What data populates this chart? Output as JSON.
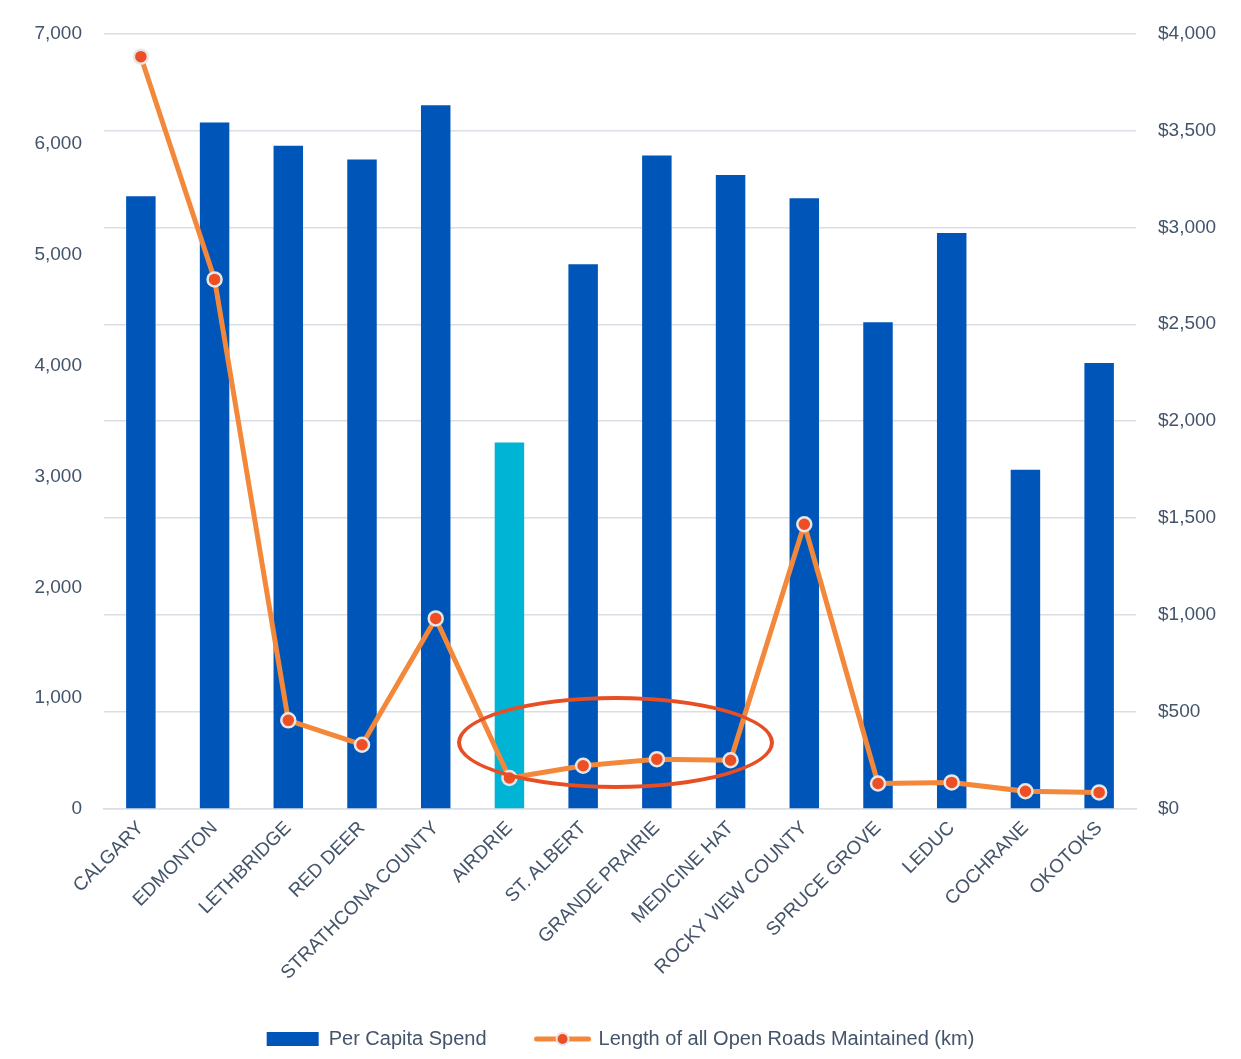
{
  "chart_data": {
    "type": "bar",
    "categories": [
      "CALGARY",
      "EDMONTON",
      "LETHBRIDGE",
      "RED DEER",
      "STRATHCONA COUNTY",
      "AIRDRIE",
      "ST. ALBERT",
      "GRANDE PRAIRIE",
      "MEDICINE HAT",
      "ROCKY VIEW COUNTY",
      "SPRUCE GROVE",
      "LEDUC",
      "COCHRANE",
      "OKOTOKS"
    ],
    "series": [
      {
        "name": "Per Capita Spend",
        "type": "bar",
        "axis": "y2",
        "color": "#0055b8",
        "colors": [
          "#0055b8",
          "#0055b8",
          "#0055b8",
          "#0055b8",
          "#0055b8",
          "#00b4d6",
          "#0055b8",
          "#0055b8",
          "#0055b8",
          "#0055b8",
          "#0055b8",
          "#0055b8",
          "#0055b8",
          "#0055b8"
        ],
        "values": [
          3160,
          3540,
          3420,
          3350,
          3630,
          1890,
          2810,
          3370,
          3270,
          3150,
          2510,
          2970,
          1750,
          2300
        ]
      },
      {
        "name": "Length of all Open Roads Maintained (km)",
        "type": "line",
        "color": "#f4883a",
        "colors": [
          "#ee4e24",
          "#ee4e24",
          "#ee4e24",
          "#ee4e24",
          "#ee4e24",
          "#ee4e24",
          "#ee4e24",
          "#ee4e24",
          "#ee4e24",
          "#ee4e24",
          "#ee4e24",
          "#ee4e24",
          "#ee4e24",
          "#ee4e24"
        ],
        "values": [
          6790,
          4780,
          800,
          580,
          1720,
          280,
          390,
          450,
          440,
          2570,
          230,
          240,
          160,
          150
        ]
      }
    ],
    "ylim": [
      0,
      7000
    ],
    "yticks": [
      0,
      {
        "value": 1000,
        "label": "1,000"
      },
      {
        "value": 2000,
        "label": "2,000"
      },
      {
        "value": 3000,
        "label": "3,000"
      },
      {
        "value": 4000,
        "label": "4,000"
      },
      {
        "value": 5000,
        "label": "5,000"
      },
      {
        "value": 6000,
        "label": "6,000"
      },
      {
        "value": 7000,
        "label": "7,000"
      }
    ],
    "y2lim": [
      0,
      4000
    ],
    "y2ticks": [
      {
        "value": 0,
        "label": "$0"
      },
      {
        "value": 500,
        "label": "$500"
      },
      {
        "value": 1000,
        "label": "$1,000"
      },
      {
        "value": 1500,
        "label": "$1,500"
      },
      {
        "value": 2000,
        "label": "$2,000"
      },
      {
        "value": 2500,
        "label": "$2,500"
      },
      {
        "value": 3000,
        "label": "$3,000"
      },
      {
        "value": 3500,
        "label": "$3,500"
      },
      {
        "value": 4000,
        "label": "$4,000"
      }
    ],
    "grid": "y2",
    "legend": "bottom",
    "marker": "circle"
  }
}
